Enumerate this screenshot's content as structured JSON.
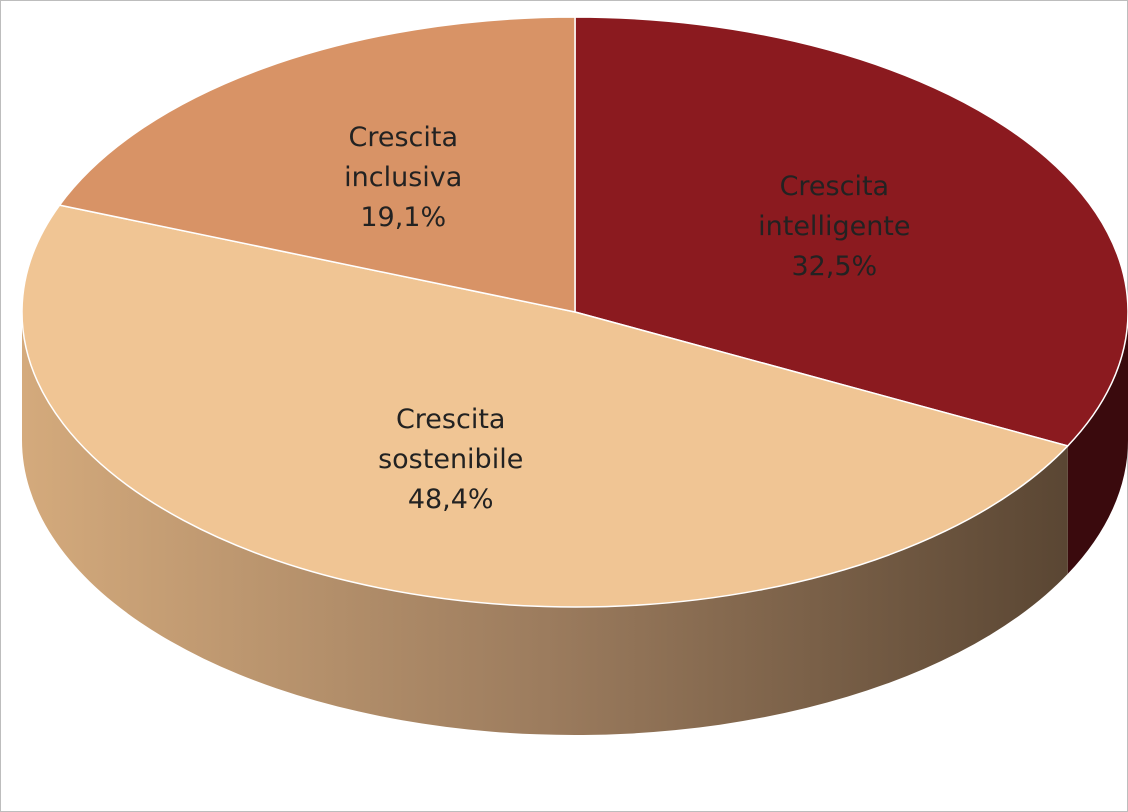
{
  "chart_data": {
    "type": "pie3d",
    "categories": [
      "Crescita intelligente",
      "Crescita sostenibile",
      "Crescita inclusiva"
    ],
    "values": [
      32.5,
      48.4,
      19.1
    ],
    "value_labels": [
      "32,5%",
      "48,4%",
      "19,1%"
    ],
    "colors": [
      "#8b1a1f",
      "#f0c594",
      "#d89366"
    ]
  }
}
